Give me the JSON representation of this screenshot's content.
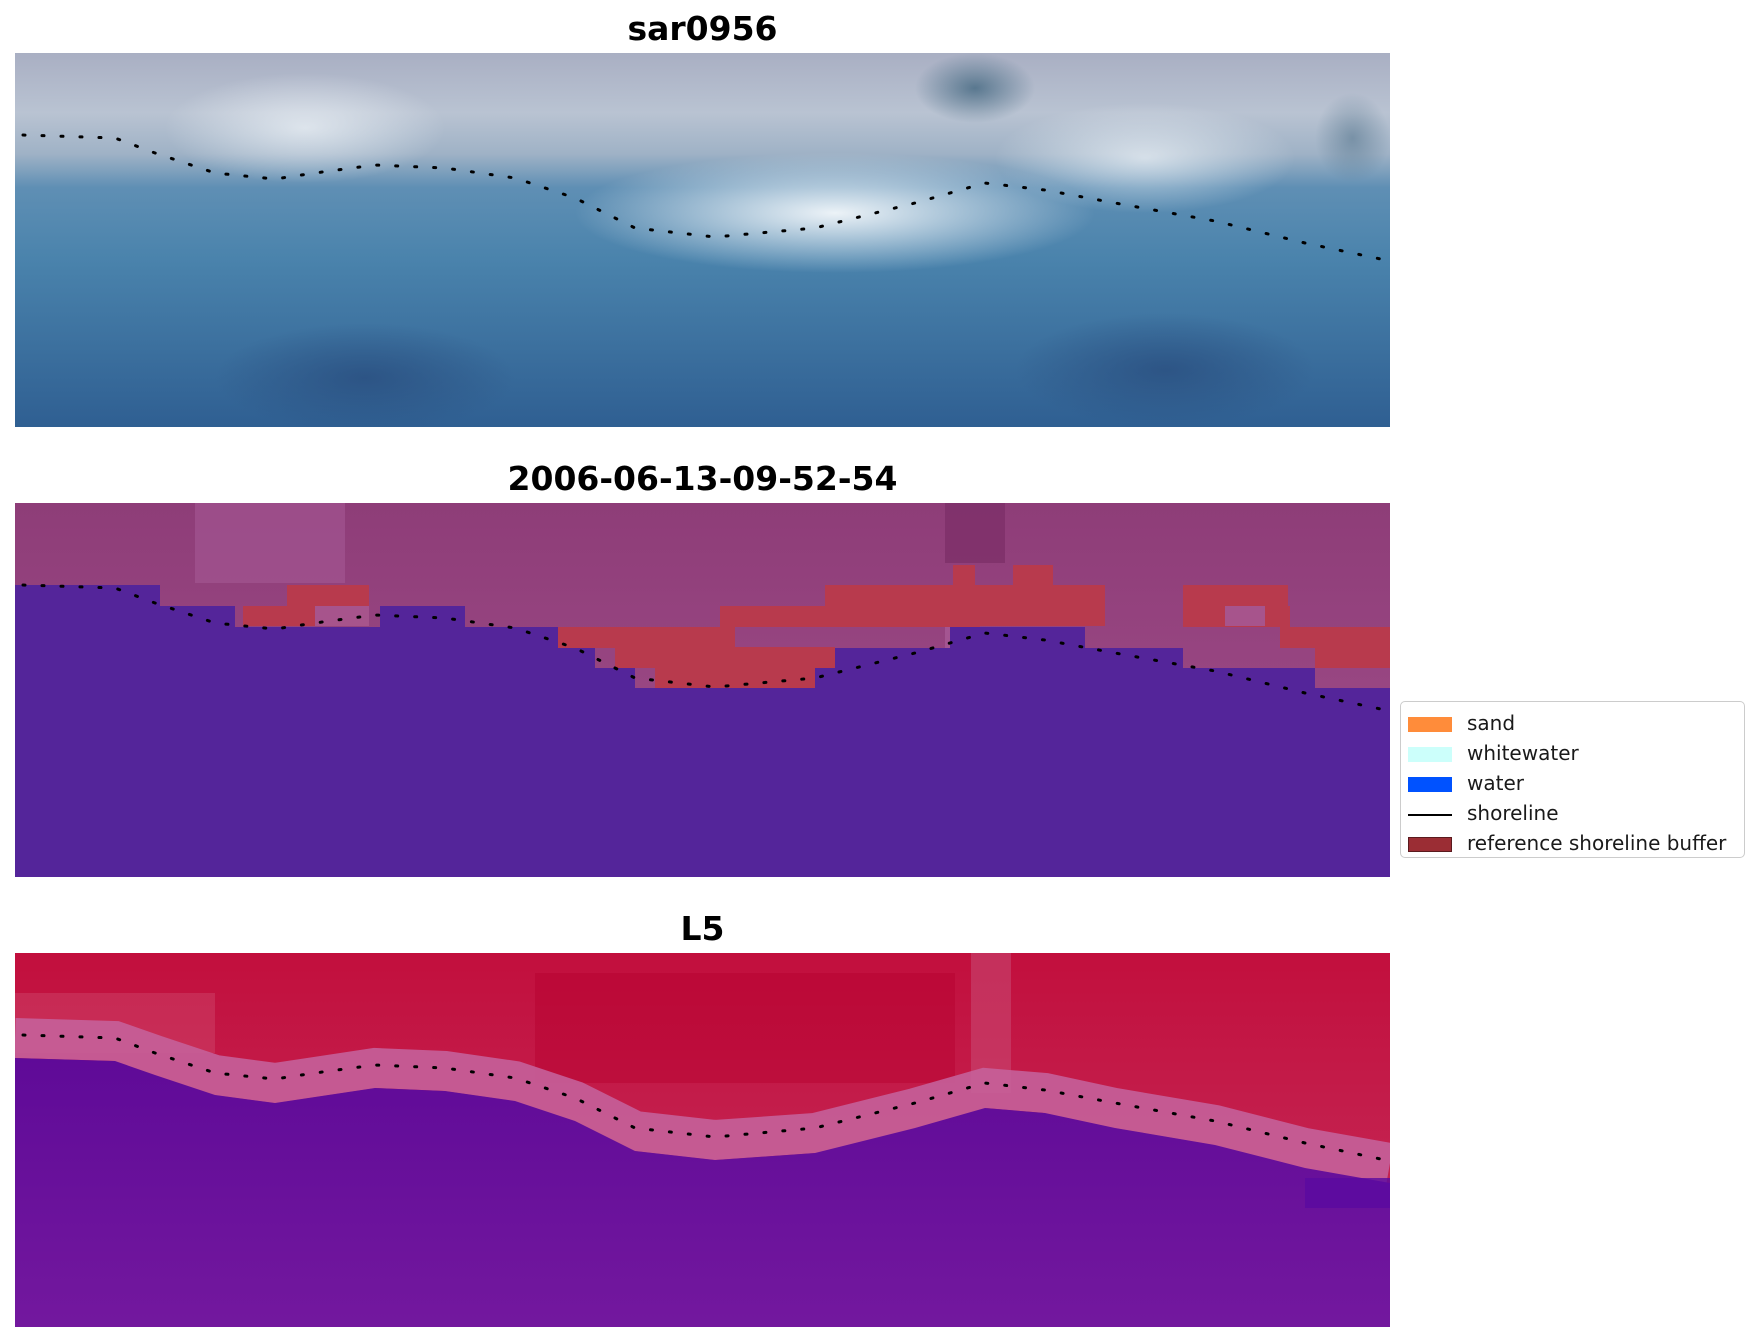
{
  "panels": [
    {
      "title": "sar0956",
      "kind": "rgb image"
    },
    {
      "title": "2006-06-13-09-52-54",
      "kind": "classification overlay"
    },
    {
      "title": "L5",
      "kind": "index map"
    }
  ],
  "legend": {
    "placement": "right, next to middle panel",
    "items": [
      {
        "label": "sand",
        "type": "patch",
        "color": "#ff8c3a"
      },
      {
        "label": "whitewater",
        "type": "patch",
        "color": "#ccfffb"
      },
      {
        "label": "water",
        "type": "patch",
        "color": "#0052ff"
      },
      {
        "label": "shoreline",
        "type": "line",
        "color": "#000000"
      },
      {
        "label": "reference shoreline buffer",
        "type": "patch",
        "color": "#9b2d34"
      }
    ]
  },
  "colors": {
    "water_class": "#54259a",
    "buffer_class": "#b83a4d",
    "land_tint": "#9a4b86",
    "index_high": "#bf0a3c",
    "index_low": "#6a0fa0"
  }
}
